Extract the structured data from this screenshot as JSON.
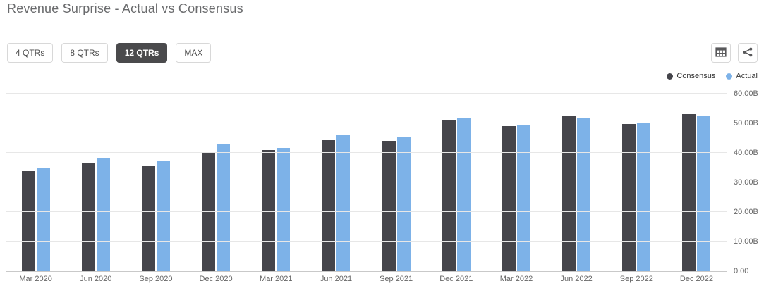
{
  "header": {
    "title": "Revenue Surprise - Actual vs Consensus"
  },
  "toolbar": {
    "range_buttons": [
      {
        "label": "4 QTRs",
        "selected": false
      },
      {
        "label": "8 QTRs",
        "selected": false
      },
      {
        "label": "12 QTRs",
        "selected": true
      },
      {
        "label": "MAX",
        "selected": false
      }
    ]
  },
  "legend": [
    {
      "label": "Consensus",
      "color": "#45454b"
    },
    {
      "label": "Actual",
      "color": "#7db2e8"
    }
  ],
  "chart_data": {
    "type": "bar",
    "title": "Revenue Surprise - Actual vs Consensus",
    "categories": [
      "Mar 2020",
      "Jun 2020",
      "Sep 2020",
      "Dec 2020",
      "Mar 2021",
      "Jun 2021",
      "Sep 2021",
      "Dec 2021",
      "Mar 2022",
      "Jun 2022",
      "Sep 2022",
      "Dec 2022"
    ],
    "series": [
      {
        "name": "Consensus",
        "color": "#45454b",
        "values": [
          33.7,
          36.5,
          35.7,
          40.2,
          41.0,
          44.3,
          44.0,
          50.9,
          49.0,
          52.3,
          49.7,
          53.1
        ]
      },
      {
        "name": "Actual",
        "color": "#7db2e8",
        "values": [
          35.0,
          38.0,
          37.2,
          43.1,
          41.7,
          46.2,
          45.3,
          51.7,
          49.4,
          51.9,
          50.1,
          52.7
        ]
      }
    ],
    "xlabel": "",
    "ylabel": "",
    "ylim": [
      0,
      60
    ],
    "ytick_interval": 10,
    "ytick_labels": [
      "0.00",
      "10.00B",
      "20.00B",
      "30.00B",
      "40.00B",
      "50.00B",
      "60.00B"
    ],
    "yaxis_side": "right",
    "grid": true,
    "legend_position": "top-right"
  }
}
